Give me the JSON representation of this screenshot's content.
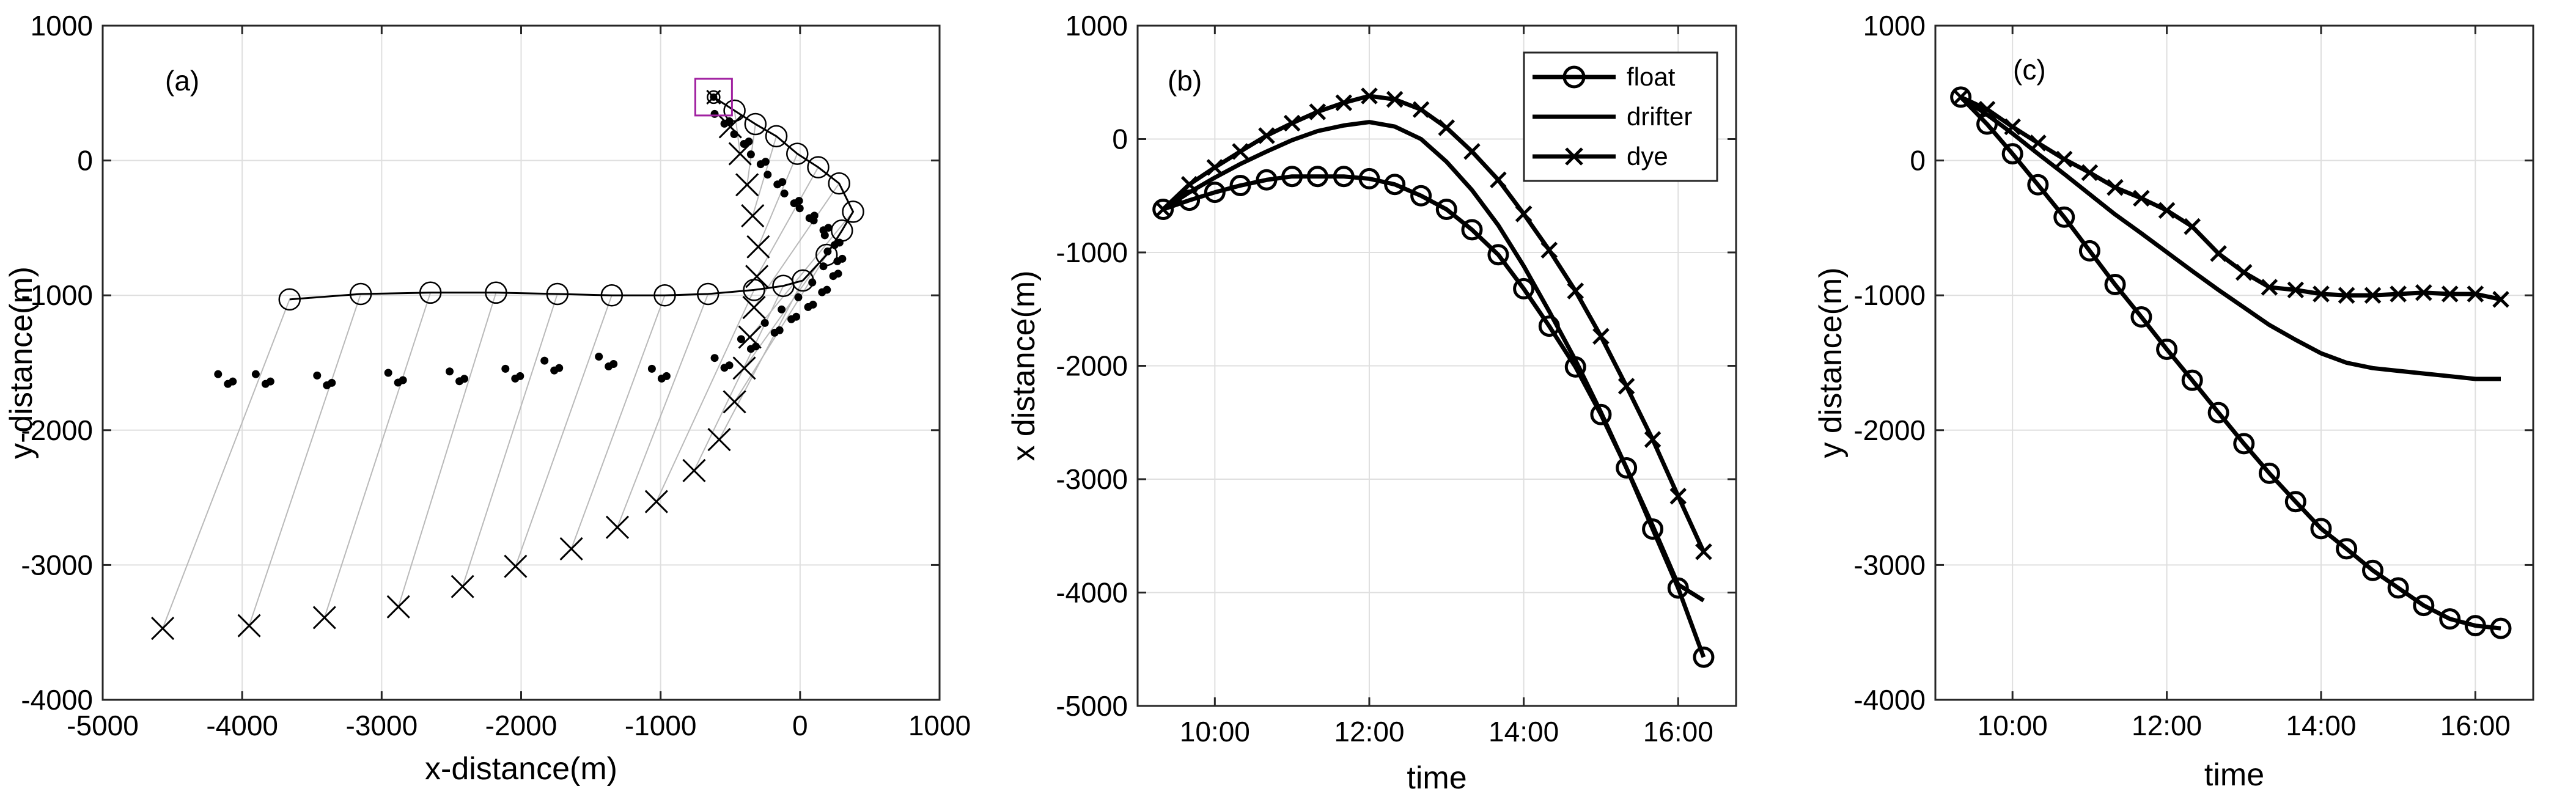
{
  "chart_data": [
    {
      "panel": "(a)",
      "type": "scatter",
      "xlabel": "x-distance(m)",
      "ylabel": "y-distance(m)",
      "xlim": [
        -5000,
        1000
      ],
      "ylim": [
        -4000,
        1000
      ],
      "xticks": [
        -5000,
        -4000,
        -3000,
        -2000,
        -1000,
        0,
        1000
      ],
      "yticks": [
        -4000,
        -3000,
        -2000,
        -1000,
        0,
        1000
      ],
      "xtick_labels": [
        "-5000",
        "-4000",
        "-3000",
        "-2000",
        "-1000",
        "0",
        "1000"
      ],
      "ytick_labels": [
        "-4000",
        "-3000",
        "-2000",
        "-1000",
        "0",
        "1000"
      ],
      "grid": true,
      "marker_box": [
        -620,
        470
      ],
      "float_line": {
        "x": [
          -620,
          -470,
          -320,
          -170,
          -20,
          130,
          280,
          380,
          300,
          190,
          20,
          -120,
          -330,
          -660,
          -970,
          -1350,
          -1740,
          -2180,
          -2650,
          -3150,
          -3660
        ],
        "y": [
          470,
          370,
          270,
          180,
          50,
          -50,
          -170,
          -380,
          -520,
          -700,
          -890,
          -930,
          -960,
          -990,
          -1000,
          -1000,
          -990,
          -980,
          -980,
          -990,
          -1030
        ]
      },
      "dye_crosses": {
        "x": [
          -620,
          -500,
          -430,
          -380,
          -340,
          -300,
          -310,
          -330,
          -360,
          -400,
          -470,
          -580,
          -760,
          -1030,
          -1310,
          -1640,
          -2040,
          -2420,
          -2880,
          -3410,
          -3950,
          -4570
        ],
        "y": [
          470,
          250,
          50,
          -180,
          -410,
          -640,
          -860,
          -1090,
          -1310,
          -1540,
          -1790,
          -2070,
          -2300,
          -2530,
          -2720,
          -2880,
          -3010,
          -3160,
          -3310,
          -3390,
          -3450,
          -3470
        ]
      },
      "drifter_clusters": {
        "x": [
          -560,
          -420,
          -300,
          -180,
          -60,
          50,
          150,
          230,
          250,
          220,
          140,
          40,
          -80,
          -200,
          -370,
          -560,
          -1010,
          -1390,
          -1780,
          -2060,
          -2460,
          -2900,
          -3410,
          -3850,
          -4120
        ],
        "y": [
          300,
          150,
          0,
          -150,
          -290,
          -400,
          -490,
          -600,
          -720,
          -830,
          -950,
          -1060,
          -1150,
          -1250,
          -1370,
          -1510,
          -1590,
          -1500,
          -1530,
          -1590,
          -1610,
          -1620,
          -1640,
          -1630,
          -1630
        ]
      }
    },
    {
      "panel": "(b)",
      "type": "line",
      "xlabel": "time",
      "ylabel": "x distance(m)",
      "xlim": [
        9.0,
        16.75
      ],
      "ylim": [
        -5000,
        1000
      ],
      "xticks": [
        10,
        12,
        14,
        16
      ],
      "xtick_labels": [
        "10:00",
        "12:00",
        "14:00",
        "16:00"
      ],
      "yticks": [
        -5000,
        -4000,
        -3000,
        -2000,
        -1000,
        0,
        1000
      ],
      "ytick_labels": [
        "-5000",
        "-4000",
        "-3000",
        "-2000",
        "-1000",
        "0",
        "1000"
      ],
      "grid": true,
      "legend": "top-right",
      "series": [
        {
          "name": "float",
          "marker": "o",
          "x": [
            9.33,
            9.67,
            10.0,
            10.33,
            10.67,
            11.0,
            11.33,
            11.67,
            12.0,
            12.33,
            12.67,
            13.0,
            13.33,
            13.67,
            14.0,
            14.33,
            14.67,
            15.0,
            15.33,
            15.67,
            16.0,
            16.33
          ],
          "y": [
            -620,
            -540,
            -470,
            -410,
            -360,
            -330,
            -330,
            -330,
            -350,
            -400,
            -500,
            -620,
            -800,
            -1020,
            -1320,
            -1650,
            -2010,
            -2430,
            -2900,
            -3440,
            -3960,
            -4570
          ]
        },
        {
          "name": "drifter",
          "marker": "none",
          "x": [
            9.33,
            9.67,
            10.0,
            10.33,
            10.67,
            11.0,
            11.33,
            11.67,
            12.0,
            12.33,
            12.67,
            13.0,
            13.33,
            13.67,
            14.0,
            14.33,
            14.67,
            15.0,
            15.33,
            15.67,
            16.0,
            16.33
          ],
          "y": [
            -620,
            -470,
            -340,
            -220,
            -110,
            -10,
            70,
            120,
            150,
            110,
            0,
            -200,
            -450,
            -760,
            -1120,
            -1520,
            -1950,
            -2410,
            -2900,
            -3410,
            -3930,
            -4070
          ]
        },
        {
          "name": "dye",
          "marker": "x",
          "x": [
            9.33,
            9.67,
            10.0,
            10.33,
            10.67,
            11.0,
            11.33,
            11.67,
            12.0,
            12.33,
            12.67,
            13.0,
            13.33,
            13.67,
            14.0,
            14.33,
            14.67,
            15.0,
            15.33,
            15.67,
            16.0,
            16.33
          ],
          "y": [
            -620,
            -400,
            -250,
            -110,
            30,
            140,
            240,
            320,
            380,
            350,
            260,
            100,
            -110,
            -360,
            -660,
            -980,
            -1340,
            -1740,
            -2180,
            -2650,
            -3150,
            -3640
          ]
        }
      ]
    },
    {
      "panel": "(c)",
      "type": "line",
      "xlabel": "time",
      "ylabel": "y distance(m)",
      "xlim": [
        9.0,
        16.75
      ],
      "ylim": [
        -4000,
        1000
      ],
      "xticks": [
        10,
        12,
        14,
        16
      ],
      "xtick_labels": [
        "10:00",
        "12:00",
        "14:00",
        "16:00"
      ],
      "yticks": [
        -4000,
        -3000,
        -2000,
        -1000,
        0,
        1000
      ],
      "ytick_labels": [
        "-4000",
        "-3000",
        "-2000",
        "-1000",
        "0",
        "1000"
      ],
      "grid": true,
      "series": [
        {
          "name": "float",
          "marker": "o",
          "x": [
            9.33,
            9.67,
            10.0,
            10.33,
            10.67,
            11.0,
            11.33,
            11.67,
            12.0,
            12.33,
            12.67,
            13.0,
            13.33,
            13.67,
            14.0,
            14.33,
            14.67,
            15.0,
            15.33,
            15.67,
            16.0,
            16.33
          ],
          "y": [
            470,
            270,
            50,
            -180,
            -420,
            -670,
            -920,
            -1160,
            -1400,
            -1630,
            -1870,
            -2100,
            -2320,
            -2530,
            -2730,
            -2880,
            -3040,
            -3170,
            -3300,
            -3400,
            -3450,
            -3470
          ]
        },
        {
          "name": "drifter",
          "marker": "none",
          "x": [
            9.33,
            9.67,
            10.0,
            10.33,
            10.67,
            11.0,
            11.33,
            11.67,
            12.0,
            12.33,
            12.67,
            13.0,
            13.33,
            13.67,
            14.0,
            14.33,
            14.67,
            15.0,
            15.33,
            15.67,
            16.0,
            16.33
          ],
          "y": [
            470,
            340,
            200,
            50,
            -100,
            -250,
            -400,
            -540,
            -680,
            -820,
            -960,
            -1090,
            -1220,
            -1330,
            -1430,
            -1500,
            -1540,
            -1560,
            -1580,
            -1600,
            -1620,
            -1620
          ]
        },
        {
          "name": "dye",
          "marker": "x",
          "x": [
            9.33,
            9.67,
            10.0,
            10.33,
            10.67,
            11.0,
            11.33,
            11.67,
            12.0,
            12.33,
            12.67,
            13.0,
            13.33,
            13.67,
            14.0,
            14.33,
            14.67,
            15.0,
            15.33,
            15.67,
            16.0,
            16.33
          ],
          "y": [
            470,
            380,
            250,
            130,
            10,
            -90,
            -200,
            -280,
            -370,
            -490,
            -690,
            -830,
            -940,
            -960,
            -990,
            -1000,
            -1000,
            -990,
            -980,
            -990,
            -990,
            -1030
          ]
        }
      ]
    }
  ]
}
